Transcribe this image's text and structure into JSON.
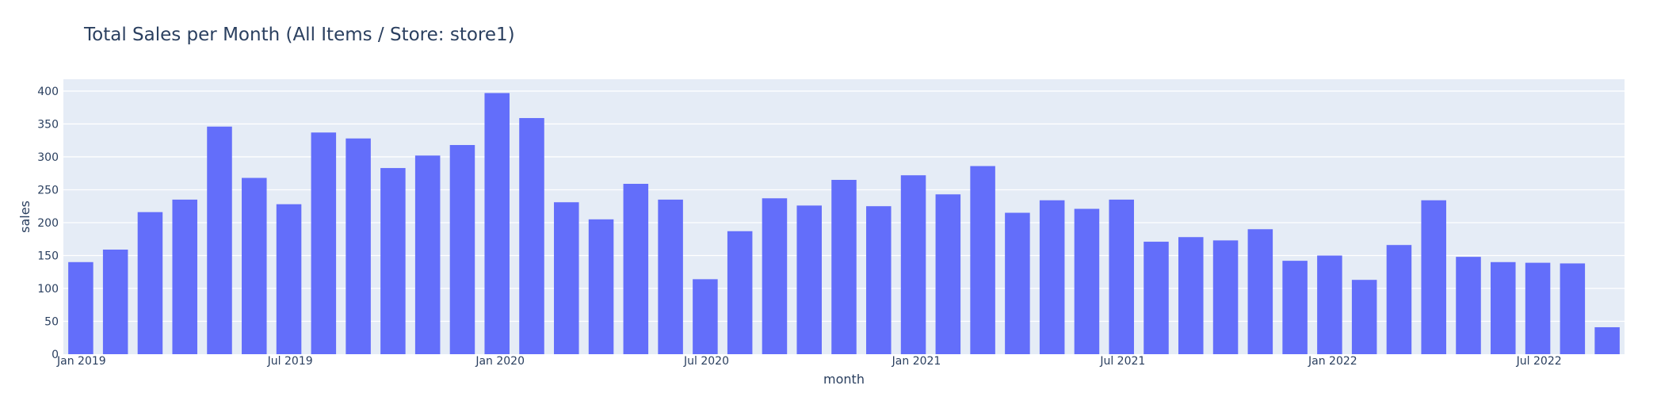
{
  "chart_data": {
    "type": "bar",
    "title": "Total Sales per Month (All Items / Store: store1)",
    "xlabel": "month",
    "ylabel": "sales",
    "ylim": [
      0,
      418
    ],
    "yticks": [
      0,
      50,
      100,
      150,
      200,
      250,
      300,
      350,
      400
    ],
    "xtick_labels": [
      {
        "label": "Jan 2019",
        "index": 0
      },
      {
        "label": "Jul 2019",
        "index": 6
      },
      {
        "label": "Jan 2020",
        "index": 12
      },
      {
        "label": "Jul 2020",
        "index": 18
      },
      {
        "label": "Jan 2021",
        "index": 24
      },
      {
        "label": "Jul 2021",
        "index": 30
      },
      {
        "label": "Jan 2022",
        "index": 36
      },
      {
        "label": "Jul 2022",
        "index": 42
      }
    ],
    "categories": [
      "2019-01",
      "2019-02",
      "2019-03",
      "2019-04",
      "2019-05",
      "2019-06",
      "2019-07",
      "2019-08",
      "2019-09",
      "2019-10",
      "2019-11",
      "2019-12",
      "2020-01",
      "2020-02",
      "2020-03",
      "2020-04",
      "2020-05",
      "2020-06",
      "2020-07",
      "2020-08",
      "2020-09",
      "2020-10",
      "2020-11",
      "2020-12",
      "2021-01",
      "2021-02",
      "2021-03",
      "2021-04",
      "2021-05",
      "2021-06",
      "2021-07",
      "2021-08",
      "2021-09",
      "2021-10",
      "2021-11",
      "2021-12",
      "2022-01",
      "2022-02",
      "2022-03",
      "2022-04",
      "2022-05",
      "2022-06",
      "2022-07",
      "2022-08",
      "2022-09"
    ],
    "values": [
      140,
      159,
      216,
      235,
      346,
      268,
      228,
      337,
      328,
      283,
      302,
      318,
      397,
      359,
      231,
      205,
      259,
      235,
      114,
      187,
      237,
      226,
      265,
      225,
      272,
      243,
      286,
      215,
      234,
      221,
      235,
      171,
      178,
      173,
      190,
      142,
      150,
      113,
      166,
      234,
      148,
      140,
      139,
      138,
      41
    ],
    "grid": true,
    "colors": {
      "bar": "#636efa",
      "plot_bg": "#e5ecf6",
      "text": "#2a3f5f"
    }
  }
}
